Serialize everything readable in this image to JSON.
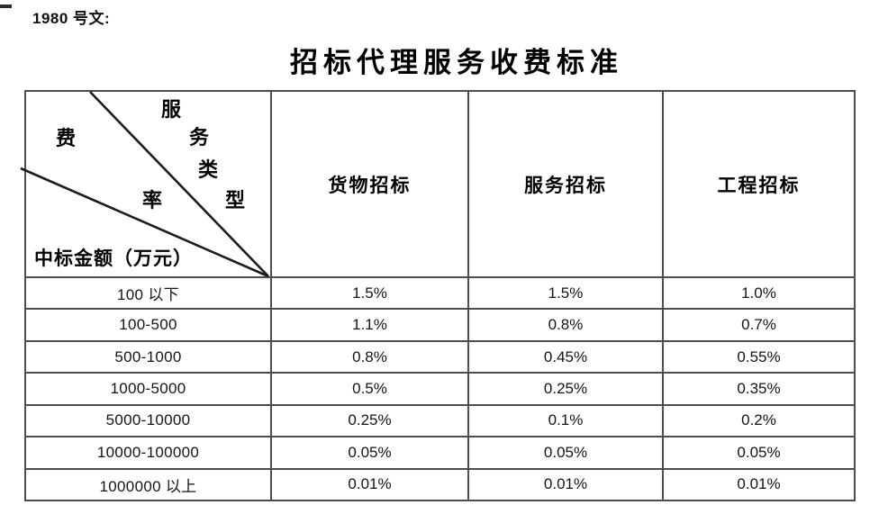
{
  "doc": {
    "label": "1980 号文:",
    "title": "招标代理服务收费标准"
  },
  "table": {
    "corner": {
      "service_type_chars": [
        "服",
        "务",
        "类",
        "型"
      ],
      "fee_rate_chars": [
        "费",
        "率"
      ],
      "amount_label": "中标金额（万元）"
    },
    "columns": [
      "货物招标",
      "服务招标",
      "工程招标"
    ],
    "rows": [
      {
        "label": "100 以下",
        "values": [
          "1.5%",
          "1.5%",
          "1.0%"
        ]
      },
      {
        "label": "100-500",
        "values": [
          "1.1%",
          "0.8%",
          "0.7%"
        ]
      },
      {
        "label": "500-1000",
        "values": [
          "0.8%",
          "0.45%",
          "0.55%"
        ]
      },
      {
        "label": "1000-5000",
        "values": [
          "0.5%",
          "0.25%",
          "0.35%"
        ]
      },
      {
        "label": "5000-10000",
        "values": [
          "0.25%",
          "0.1%",
          "0.2%"
        ]
      },
      {
        "label": "10000-100000",
        "values": [
          "0.05%",
          "0.05%",
          "0.05%"
        ]
      },
      {
        "label": "1000000 以上",
        "values": [
          "0.01%",
          "0.01%",
          "0.01%"
        ]
      }
    ],
    "colors": {
      "border": "#4d4d4d",
      "diagonal": "#1c1c1c",
      "text": "#111111"
    }
  }
}
